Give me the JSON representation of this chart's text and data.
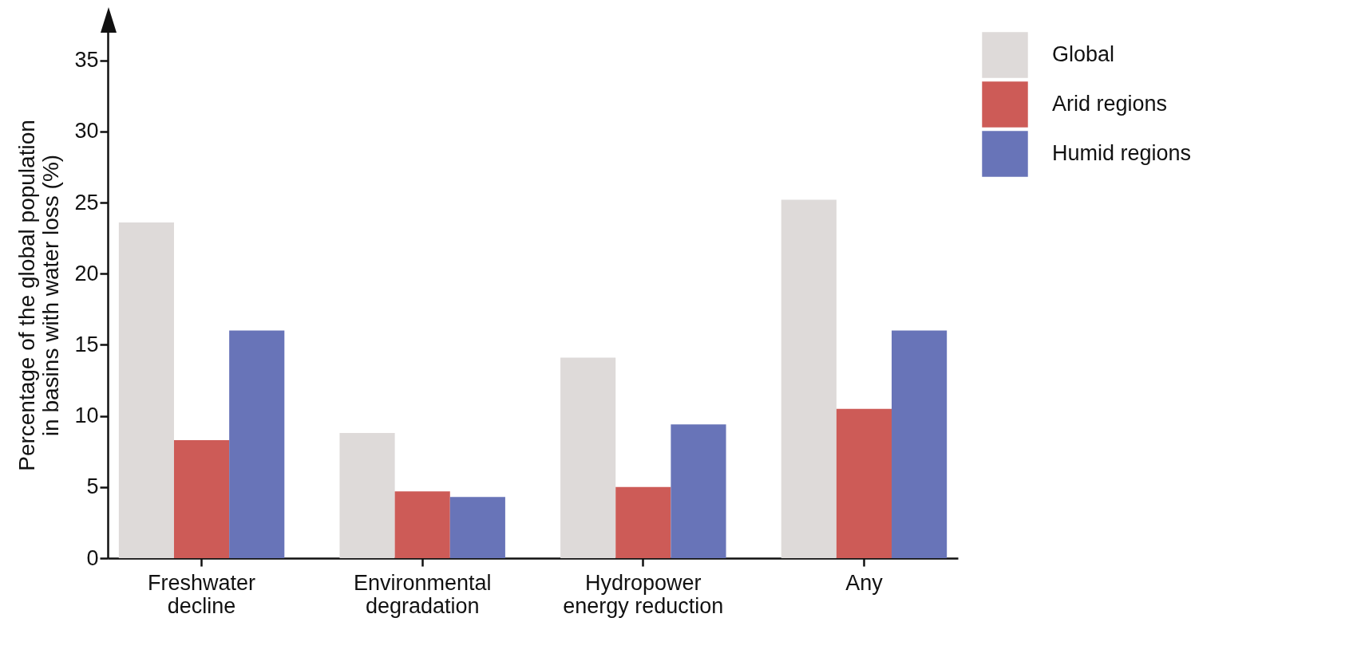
{
  "chart_data": {
    "type": "bar",
    "ylabel": "Percentage of the global population in basins with water loss (%)",
    "categories": [
      "Freshwater decline",
      "Environmental degradation",
      "Hydropower energy reduction",
      "Any"
    ],
    "series": [
      {
        "name": "Global",
        "color": "#dedad9",
        "values": [
          23.6,
          8.8,
          14.1,
          25.2
        ]
      },
      {
        "name": "Arid regions",
        "color": "#cd5b57",
        "values": [
          8.3,
          4.7,
          5.0,
          10.5
        ]
      },
      {
        "name": "Humid regions",
        "color": "#6874b8",
        "values": [
          16.0,
          4.3,
          9.4,
          16.0
        ]
      }
    ],
    "ylim": [
      0,
      37
    ],
    "yticks": [
      0,
      5,
      10,
      15,
      20,
      25,
      30,
      35
    ],
    "grid": false,
    "legend": "right"
  }
}
